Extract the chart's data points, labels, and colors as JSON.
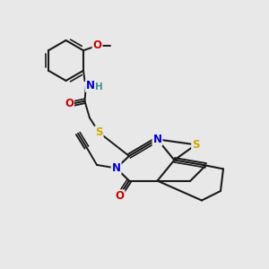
{
  "background_color": "#e8e8e8",
  "bond_color": "#1a1a1a",
  "atom_colors": {
    "N": "#0000cc",
    "O": "#cc0000",
    "S": "#ccaa00",
    "H": "#4a9090",
    "C": "#1a1a1a"
  },
  "figsize": [
    3.0,
    3.0
  ],
  "dpi": 100
}
